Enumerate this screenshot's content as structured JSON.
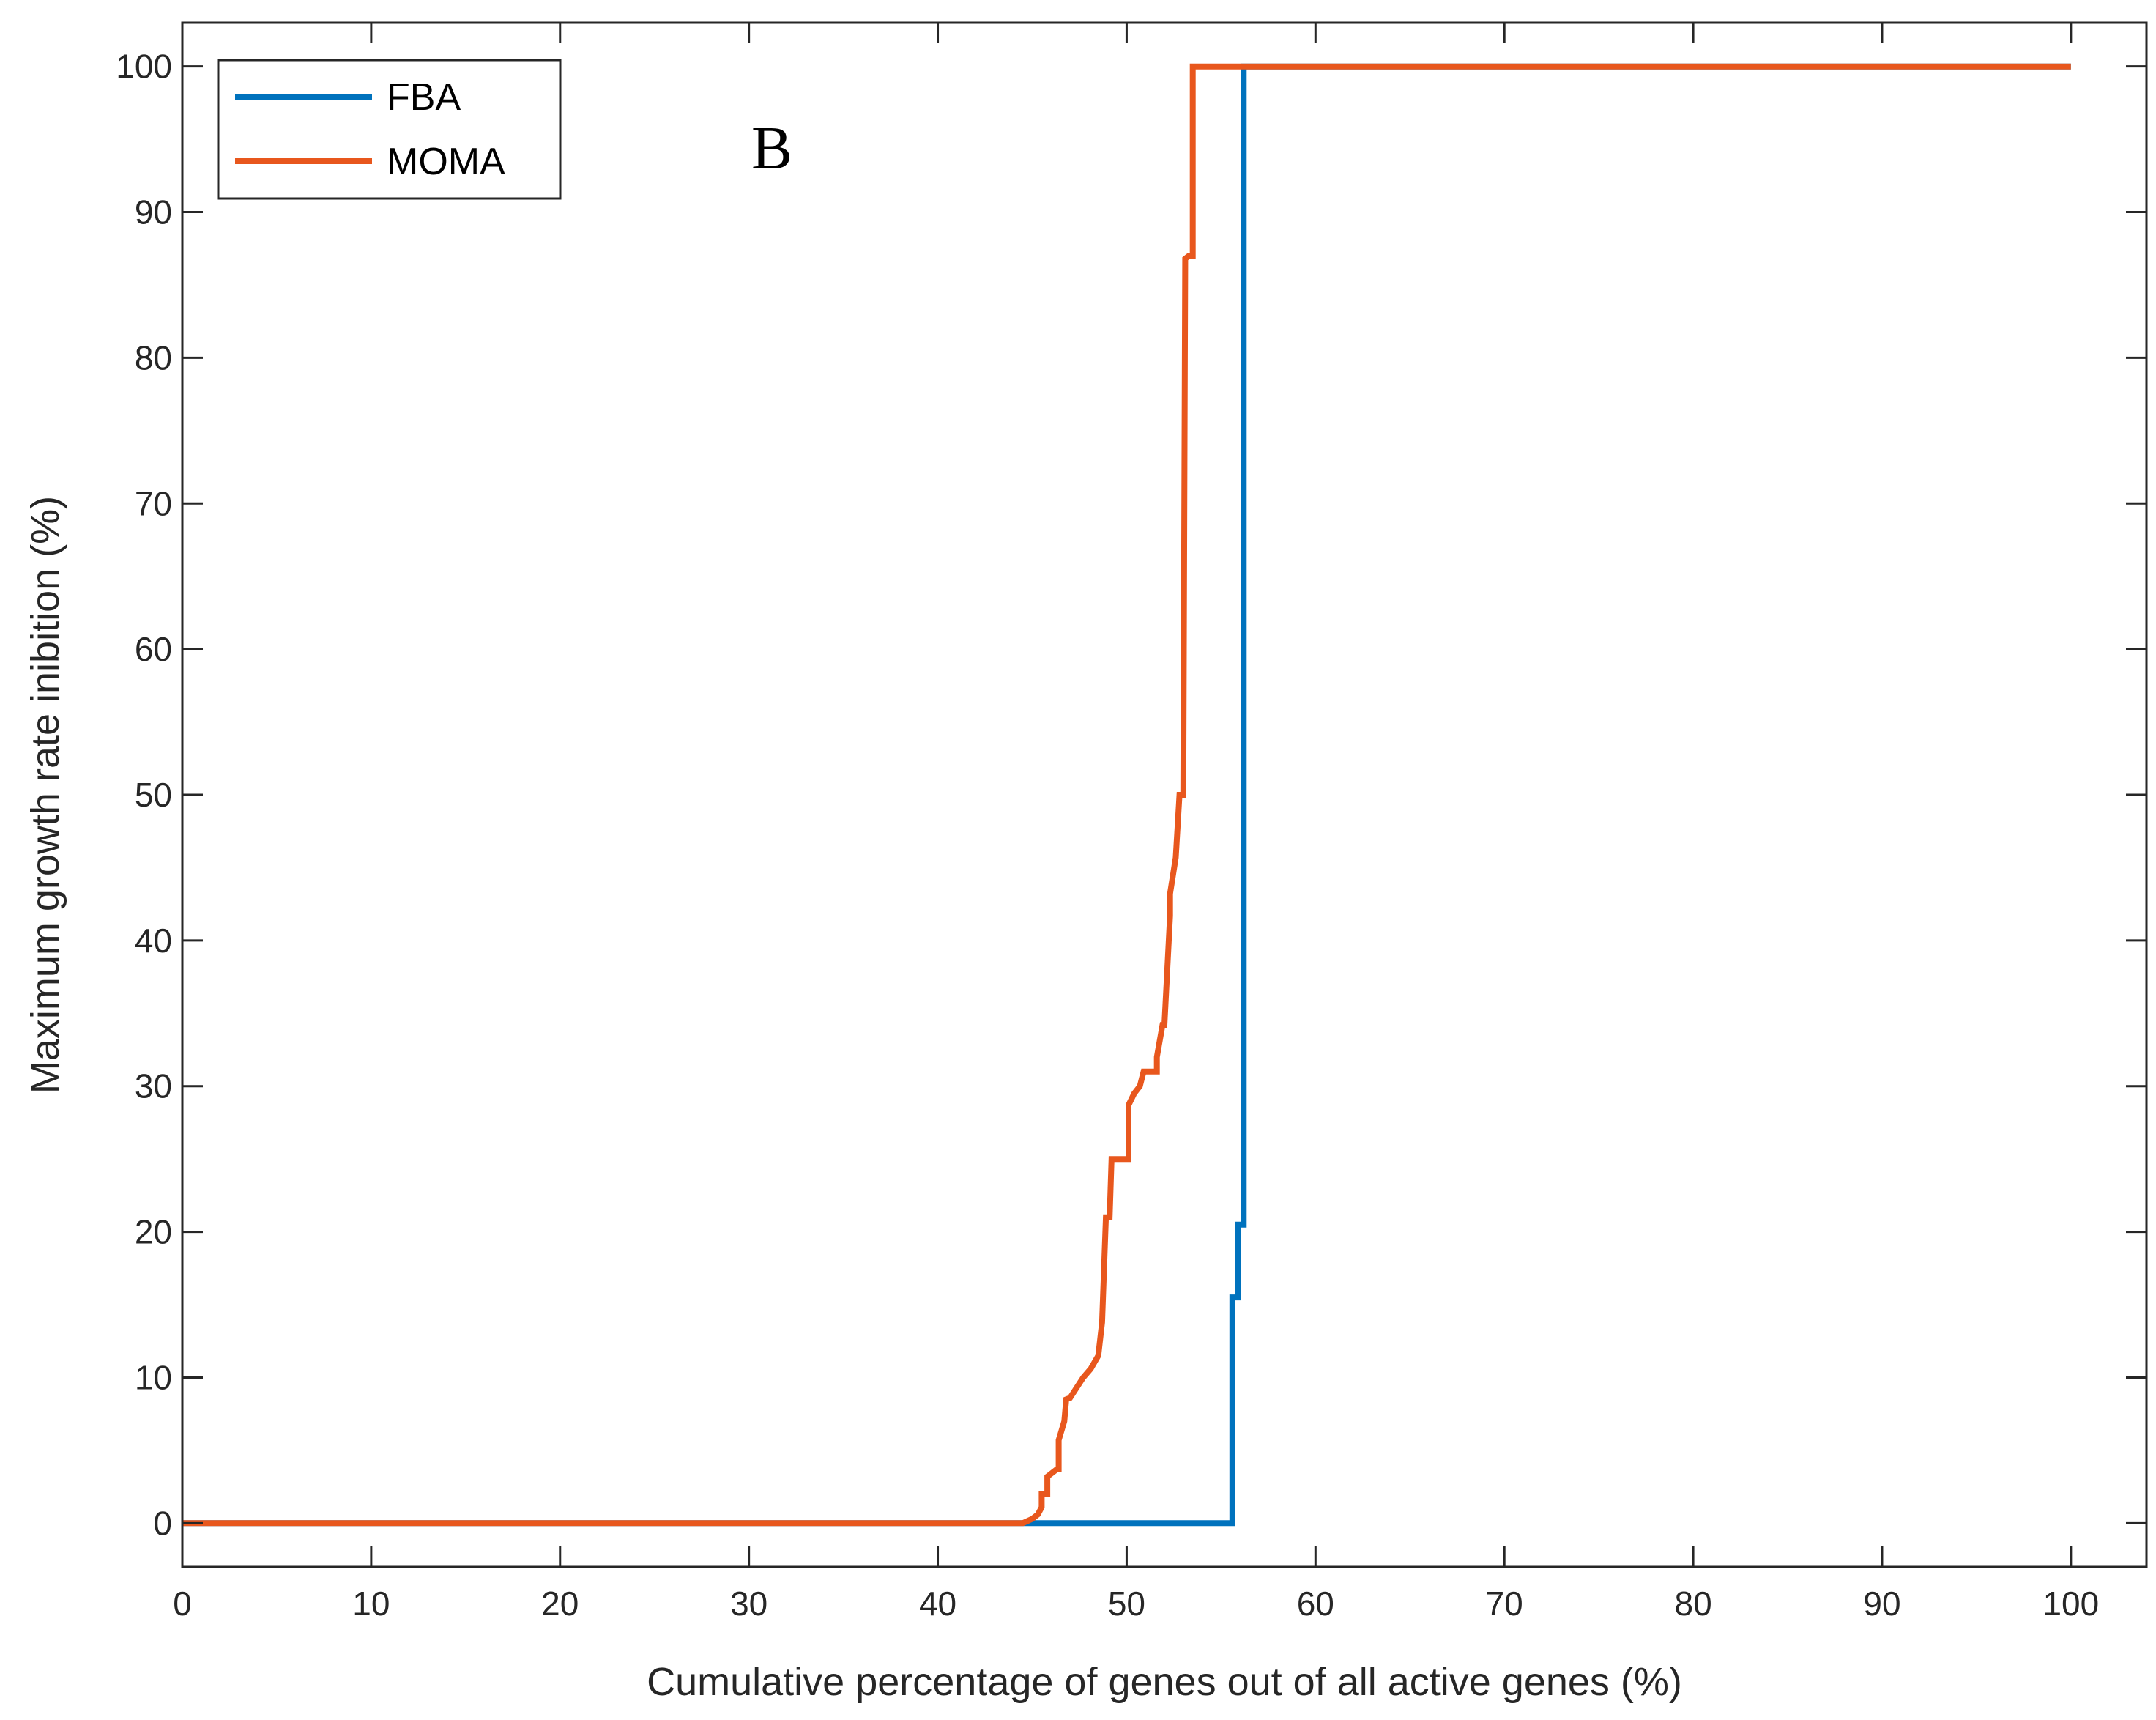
{
  "chart_data": {
    "type": "line",
    "title": "",
    "annotation": "B",
    "xlabel": "Cumulative percentage of genes out of all active genes (%)",
    "ylabel": "Maximum growth rate inibition (%)",
    "xlim": [
      0,
      104
    ],
    "ylim": [
      -3,
      103
    ],
    "xticks": [
      0,
      10,
      20,
      30,
      40,
      50,
      60,
      70,
      80,
      90,
      100
    ],
    "yticks": [
      0,
      10,
      20,
      30,
      40,
      50,
      60,
      70,
      80,
      90,
      100
    ],
    "xtick_labels": [
      "0",
      "10",
      "20",
      "30",
      "40",
      "50",
      "60",
      "70",
      "80",
      "90",
      "100"
    ],
    "ytick_labels": [
      "0",
      "10",
      "20",
      "30",
      "40",
      "50",
      "60",
      "70",
      "80",
      "90",
      "100"
    ],
    "legend_position": "top-left",
    "series": [
      {
        "name": "FBA",
        "color": "#0072BD",
        "x": [
          0,
          55.6,
          55.6,
          55.9,
          55.9,
          56.2,
          56.2,
          100
        ],
        "y": [
          0,
          0,
          15.5,
          15.5,
          20.5,
          20.5,
          100,
          100
        ]
      },
      {
        "name": "MOMA",
        "color": "#E8571D",
        "x": [
          0,
          44.5,
          45.0,
          45.3,
          45.5,
          45.5,
          45.8,
          45.8,
          46.3,
          46.4,
          46.4,
          46.7,
          46.8,
          47.0,
          47.3,
          47.7,
          48.1,
          48.5,
          48.7,
          48.9,
          49.1,
          49.2,
          49.4,
          50.1,
          50.1,
          50.4,
          50.7,
          50.9,
          51.6,
          51.6,
          51.9,
          52.0,
          52.3,
          52.3,
          52.6,
          52.8,
          53.0,
          53.1,
          53.3,
          53.5,
          53.5,
          100
        ],
        "y": [
          0,
          0,
          0.3,
          0.6,
          1.1,
          2.0,
          2.0,
          3.2,
          3.7,
          3.7,
          5.7,
          7.0,
          8.5,
          8.6,
          9.2,
          10.0,
          10.6,
          11.5,
          13.8,
          21.0,
          21.0,
          25.0,
          25.0,
          25.0,
          28.7,
          29.5,
          30.0,
          31.0,
          31.0,
          32.0,
          34.2,
          34.2,
          41.7,
          43.2,
          45.7,
          50.0,
          50.0,
          86.8,
          87.0,
          87.0,
          100,
          100
        ]
      }
    ]
  }
}
